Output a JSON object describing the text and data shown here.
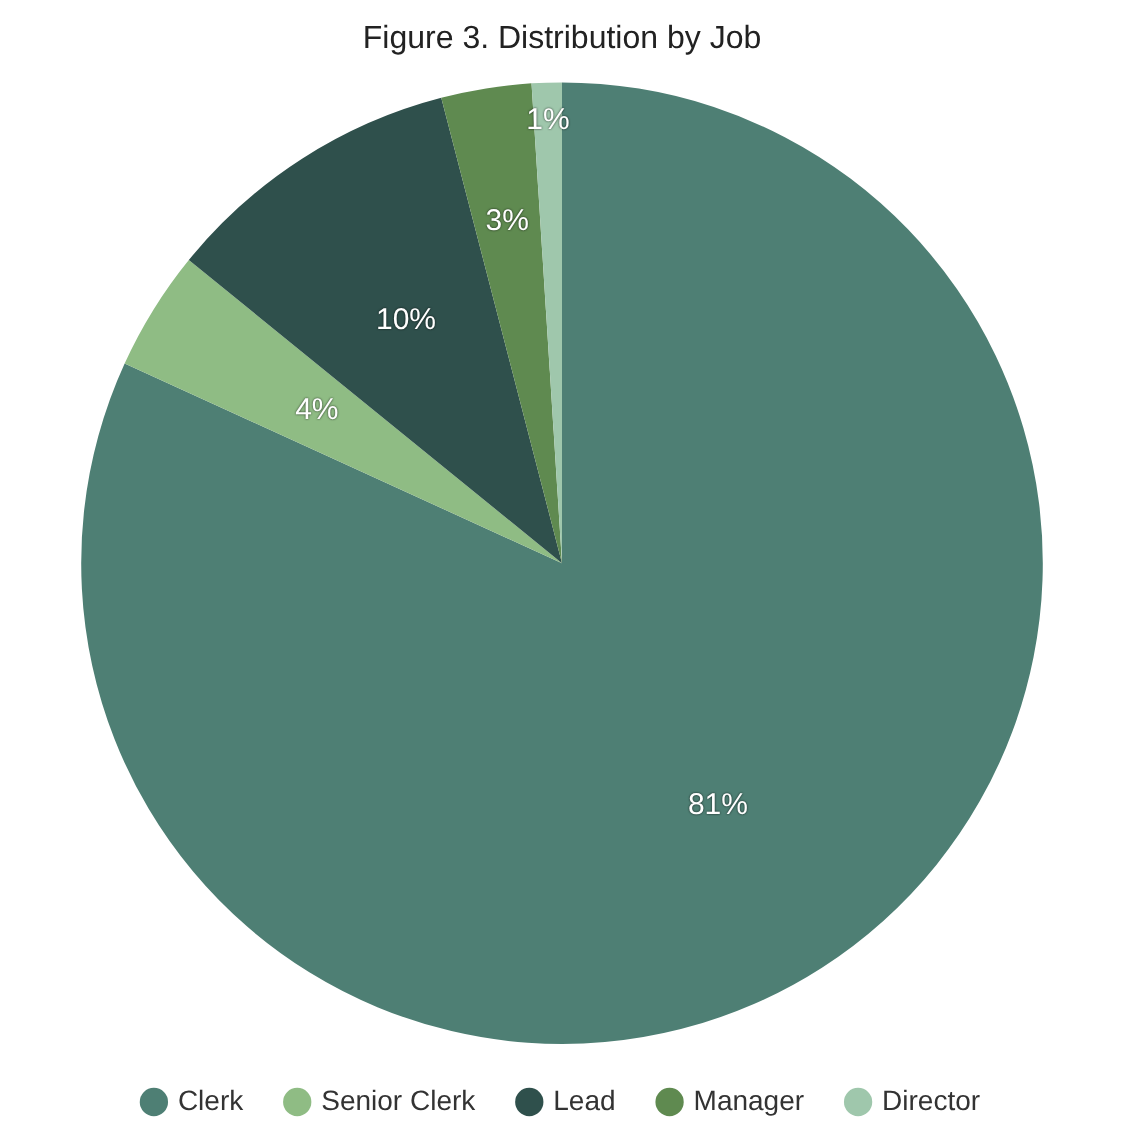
{
  "chart_data": {
    "type": "pie",
    "title": "Figure 3. Distribution by Job",
    "categories": [
      "Clerk",
      "Senior Clerk",
      "Lead",
      "Manager",
      "Director"
    ],
    "values": [
      81,
      4,
      10,
      3,
      1
    ],
    "colors": [
      "#4e7f74",
      "#8fbc84",
      "#2f504c",
      "#5f8a50",
      "#9fc7ac"
    ],
    "value_labels": [
      "81%",
      "4%",
      "10%",
      "3%",
      "1%"
    ],
    "legend": "bottom"
  }
}
